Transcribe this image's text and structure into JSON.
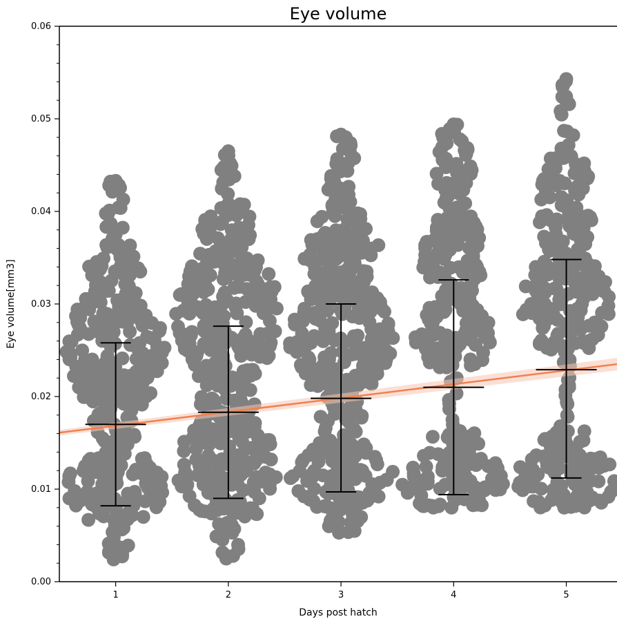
{
  "chart_data": {
    "type": "scatter",
    "title": "Eye volume",
    "xlabel": "Days post hatch",
    "ylabel": "Eye volume[mm3]",
    "categories": [
      "1",
      "2",
      "3",
      "4",
      "5"
    ],
    "x_ticks": [
      "1",
      "2",
      "3",
      "4",
      "5"
    ],
    "y_ticks": [
      "0.00",
      "0.01",
      "0.02",
      "0.03",
      "0.04",
      "0.05",
      "0.06"
    ],
    "xlim": [
      0.5,
      5.45
    ],
    "ylim": [
      0.0,
      0.06
    ],
    "grid": false,
    "colors": {
      "points": "#808080",
      "errorbar": "#000000",
      "trend": "#f08050",
      "band": "#f6c4b0"
    },
    "groups": [
      {
        "day": 1,
        "mean": 0.017,
        "lower": 0.0082,
        "upper": 0.0258,
        "min": 0.0024,
        "max": 0.0433,
        "clusters": [
          [
            0.0024,
            0.0065,
            0.25
          ],
          [
            0.0065,
            0.014,
            0.95
          ],
          [
            0.014,
            0.019,
            0.45
          ],
          [
            0.019,
            0.0315,
            0.95
          ],
          [
            0.0315,
            0.0365,
            0.55
          ],
          [
            0.0365,
            0.0433,
            0.2
          ]
        ]
      },
      {
        "day": 2,
        "mean": 0.0183,
        "lower": 0.009,
        "upper": 0.0276,
        "min": 0.0025,
        "max": 0.0465,
        "clusters": [
          [
            0.0025,
            0.007,
            0.25
          ],
          [
            0.007,
            0.0175,
            1.0
          ],
          [
            0.0175,
            0.022,
            0.55
          ],
          [
            0.022,
            0.0355,
            1.0
          ],
          [
            0.0355,
            0.041,
            0.5
          ],
          [
            0.041,
            0.0465,
            0.15
          ]
        ]
      },
      {
        "day": 3,
        "mean": 0.0198,
        "lower": 0.0097,
        "upper": 0.03,
        "min": 0.0053,
        "max": 0.0483,
        "clusters": [
          [
            0.0053,
            0.008,
            0.45
          ],
          [
            0.008,
            0.015,
            1.0
          ],
          [
            0.015,
            0.021,
            0.4
          ],
          [
            0.021,
            0.032,
            1.0
          ],
          [
            0.032,
            0.04,
            0.75
          ],
          [
            0.04,
            0.0483,
            0.3
          ]
        ]
      },
      {
        "day": 4,
        "mean": 0.021,
        "lower": 0.0094,
        "upper": 0.0326,
        "min": 0.008,
        "max": 0.0494,
        "clusters": [
          [
            0.008,
            0.014,
            1.0
          ],
          [
            0.014,
            0.0165,
            0.5
          ],
          [
            0.0165,
            0.023,
            0.1
          ],
          [
            0.023,
            0.03,
            0.75
          ],
          [
            0.03,
            0.04,
            0.6
          ],
          [
            0.04,
            0.0494,
            0.35
          ]
        ]
      },
      {
        "day": 5,
        "mean": 0.0229,
        "lower": 0.0112,
        "upper": 0.0348,
        "min": 0.008,
        "max": 0.0543,
        "clusters": [
          [
            0.008,
            0.014,
            1.0
          ],
          [
            0.014,
            0.017,
            0.45
          ],
          [
            0.017,
            0.025,
            0.12
          ],
          [
            0.025,
            0.035,
            0.85
          ],
          [
            0.035,
            0.046,
            0.55
          ],
          [
            0.046,
            0.0543,
            0.15
          ]
        ]
      }
    ],
    "trend": {
      "x": [
        0.5,
        5.45
      ],
      "y": [
        0.0161,
        0.0235
      ]
    }
  }
}
